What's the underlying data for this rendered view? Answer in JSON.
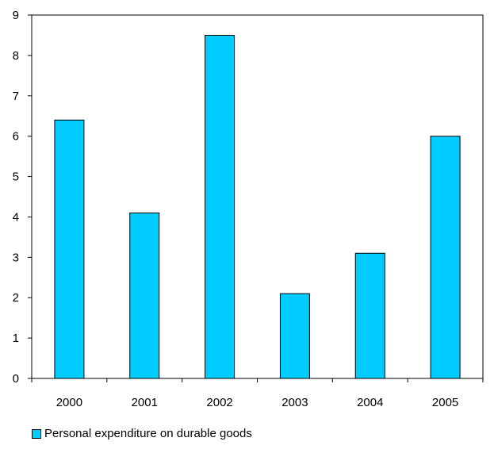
{
  "chart_data": {
    "type": "bar",
    "categories": [
      "2000",
      "2001",
      "2002",
      "2003",
      "2004",
      "2005"
    ],
    "series": [
      {
        "name": "Personal expenditure on durable goods",
        "values": [
          6.4,
          4.1,
          8.5,
          2.1,
          3.1,
          6.0
        ]
      }
    ],
    "ylim": [
      0,
      9
    ],
    "yticks": [
      0,
      1,
      2,
      3,
      4,
      5,
      6,
      7,
      8,
      9
    ],
    "grid": false,
    "legend_position": "bottom-left",
    "bar_color": "#00CCFF",
    "title": "",
    "xlabel": "",
    "ylabel": ""
  }
}
